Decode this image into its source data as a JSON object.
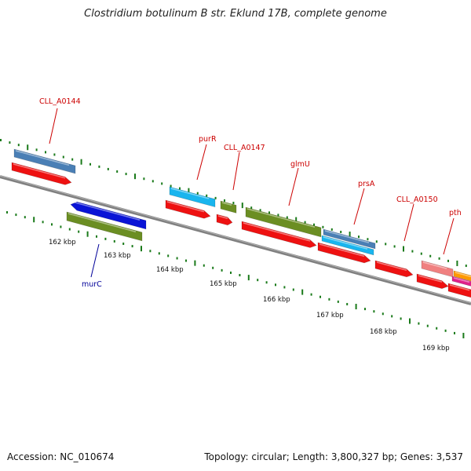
{
  "header": {
    "title": "Clostridium botulinum B str. Eklund 17B, complete genome"
  },
  "footer": {
    "accession": "Accession: NC_010674",
    "summary": "Topology: circular; Length: 3,800,327 bp; Genes: 3,537"
  },
  "map": {
    "kbp_labels": [
      "162 kbp",
      "163 kbp",
      "164 kbp",
      "165 kbp",
      "166 kbp",
      "167 kbp",
      "168 kbp",
      "169 kbp"
    ],
    "gene_labels": [
      {
        "text": "CLL_A0144",
        "color": "#cc0000"
      },
      {
        "text": "purR",
        "color": "#cc0000"
      },
      {
        "text": "CLL_A0147",
        "color": "#cc0000"
      },
      {
        "text": "glmU",
        "color": "#cc0000"
      },
      {
        "text": "prsA",
        "color": "#cc0000"
      },
      {
        "text": "CLL_A0150",
        "color": "#cc0000"
      },
      {
        "text": "pth",
        "color": "#cc0000"
      },
      {
        "text": "murC",
        "color": "#000099"
      }
    ],
    "colors": {
      "backbone": "#808080",
      "tick": "#1a7a1a",
      "cds_red": "#ee1111",
      "steel_blue": "#4a7fb5",
      "sky_blue": "#19b5ee",
      "olive_green": "#6b8e23",
      "deep_blue": "#0a14d6",
      "salmon": "#f08080",
      "orange": "#ff9900",
      "magenta": "#e0218a"
    }
  }
}
